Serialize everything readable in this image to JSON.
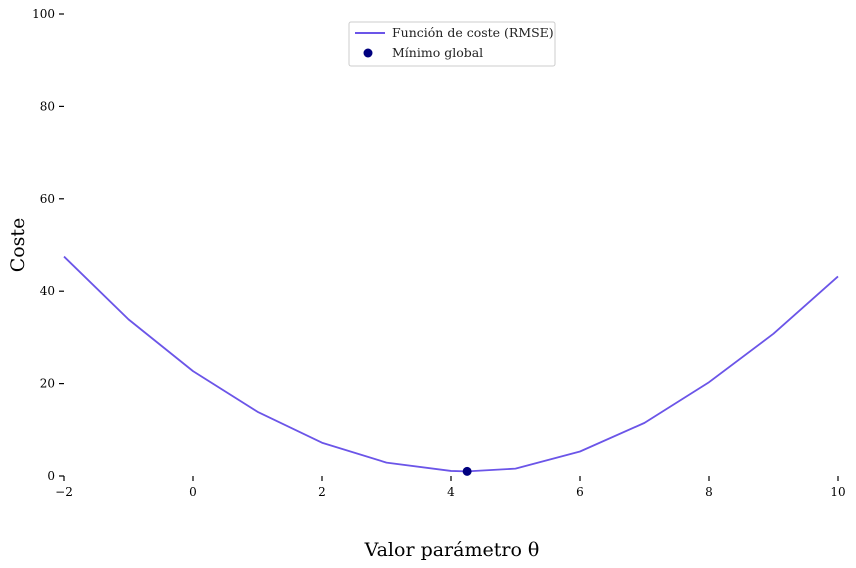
{
  "chart_data": {
    "type": "line",
    "xlabel": "Valor parámetro θ",
    "ylabel": "Coste",
    "xlim": [
      -2,
      10
    ],
    "ylim": [
      0,
      100
    ],
    "xticks": [
      "−2",
      "0",
      "2",
      "4",
      "6",
      "8",
      "10"
    ],
    "xtick_values": [
      -2,
      0,
      2,
      4,
      6,
      8,
      10
    ],
    "yticks": [
      "0",
      "20",
      "40",
      "60",
      "80",
      "100"
    ],
    "ytick_values": [
      0,
      20,
      40,
      60,
      80,
      100
    ],
    "grid": false,
    "legend_position": "top-center",
    "series": [
      {
        "name": "Función de coste (RMSE)",
        "kind": "line",
        "color": "#6b55e8",
        "x": [
          -2,
          -1,
          0,
          1,
          2,
          3,
          4,
          4.25,
          5,
          6,
          7,
          8,
          9,
          10
        ],
        "y": [
          47.5,
          33.9,
          22.7,
          13.9,
          7.2,
          2.9,
          1.1,
          1.0,
          1.6,
          5.3,
          11.5,
          20.3,
          30.8,
          43.2
        ]
      },
      {
        "name": "Mínimo global",
        "kind": "scatter",
        "color": "#00007f",
        "x": [
          4.25
        ],
        "y": [
          1.0
        ]
      }
    ]
  }
}
